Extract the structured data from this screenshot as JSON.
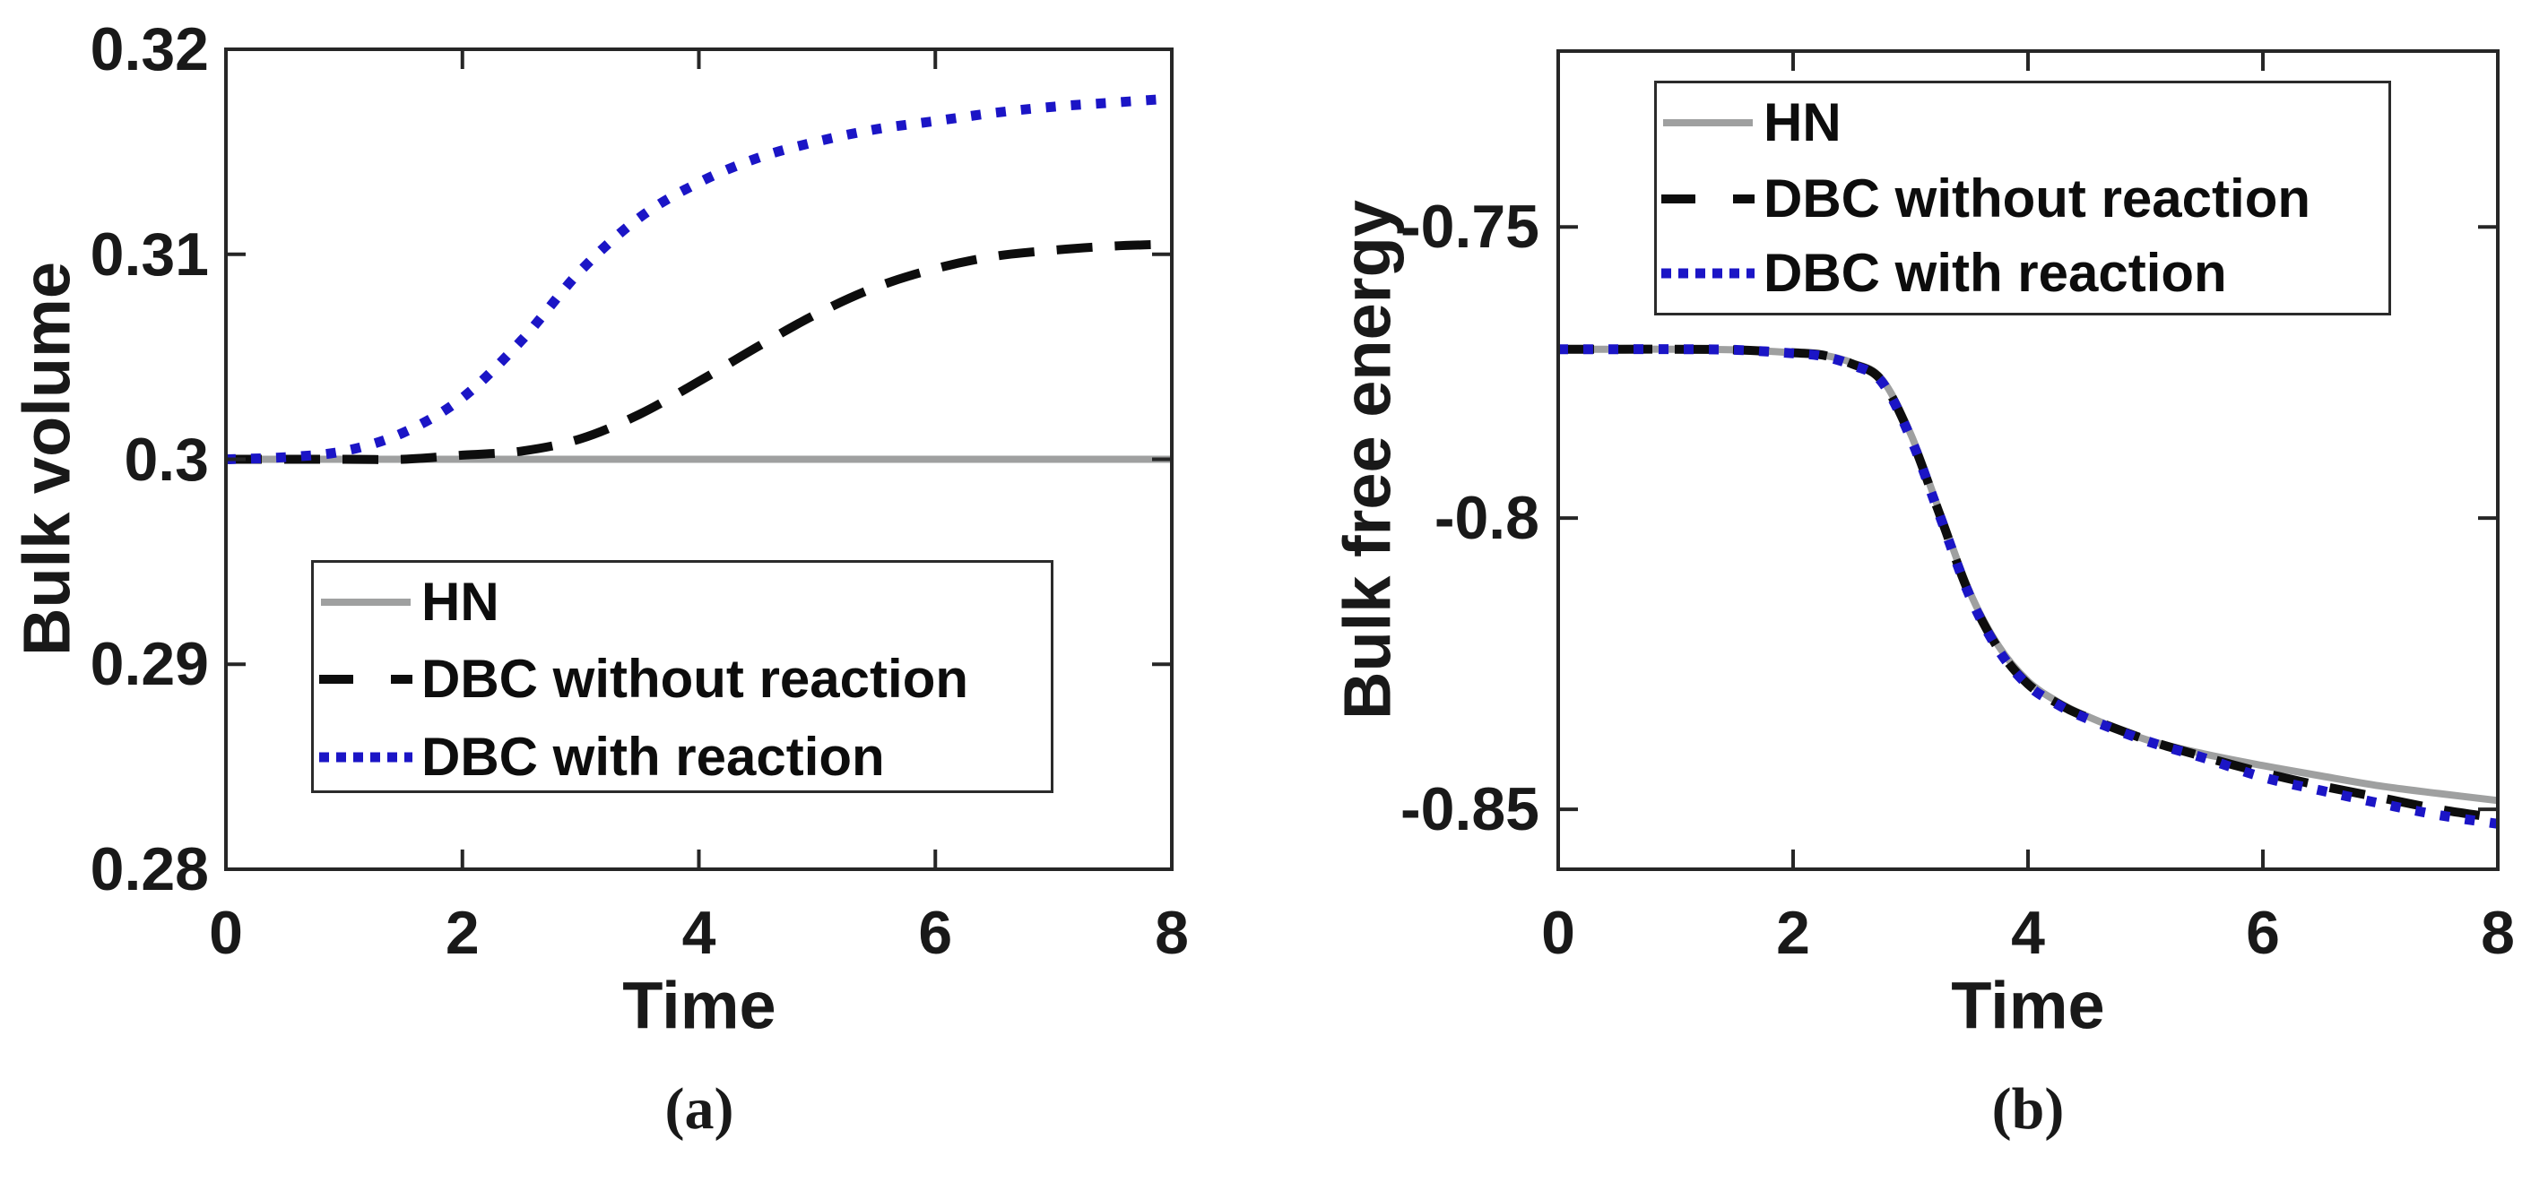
{
  "figure": {
    "panel_a_label": "(a)",
    "panel_b_label": "(b)"
  },
  "chart_data": [
    {
      "type": "line",
      "panel": "a",
      "title": "",
      "xlabel": "Time",
      "ylabel": "Bulk volume",
      "xlim": [
        0,
        8
      ],
      "ylim": [
        0.28,
        0.32
      ],
      "grid": false,
      "legend_position": "lower-left-inside",
      "x_ticks": [
        0,
        2,
        4,
        6,
        8
      ],
      "x_tick_labels": [
        "0",
        "2",
        "4",
        "6",
        "8"
      ],
      "y_ticks": [
        0.32,
        0.31,
        0.3,
        0.29,
        0.28
      ],
      "y_tick_labels": [
        "0.32",
        "0.31",
        "0.3",
        "0.29",
        "0.28"
      ],
      "x": [
        0,
        0.5,
        1,
        1.5,
        2,
        2.5,
        3,
        3.5,
        4,
        4.5,
        5,
        5.5,
        6,
        6.5,
        7,
        7.5,
        8
      ],
      "series": [
        {
          "name": "HN",
          "color": "#9FA0A0",
          "line_style": "solid",
          "values": [
            0.3,
            0.3,
            0.3,
            0.3,
            0.3,
            0.3,
            0.3,
            0.3,
            0.3,
            0.3,
            0.3,
            0.3,
            0.3,
            0.3,
            0.3,
            0.3,
            0.3
          ]
        },
        {
          "name": "DBC without reaction",
          "color": "#0d0d0d",
          "line_style": "dashed",
          "values": [
            0.3,
            0.3,
            0.3,
            0.3,
            0.3002,
            0.3004,
            0.301,
            0.3022,
            0.3038,
            0.3055,
            0.3071,
            0.3084,
            0.3093,
            0.3099,
            0.3102,
            0.3104,
            0.3105
          ]
        },
        {
          "name": "DBC with reaction",
          "color": "#1B15C6",
          "line_style": "dotted",
          "values": [
            0.3,
            0.3001,
            0.3004,
            0.3013,
            0.303,
            0.3058,
            0.3092,
            0.3118,
            0.3135,
            0.3147,
            0.3155,
            0.3161,
            0.3165,
            0.3169,
            0.3172,
            0.3174,
            0.3176
          ]
        }
      ]
    },
    {
      "type": "line",
      "panel": "b",
      "title": "",
      "xlabel": "Time",
      "ylabel": "Bulk free energy",
      "xlim": [
        0,
        8
      ],
      "ylim": [
        -0.86,
        -0.72
      ],
      "grid": false,
      "legend_position": "upper-left-inside",
      "x_ticks": [
        0,
        2,
        4,
        6,
        8
      ],
      "x_tick_labels": [
        "0",
        "2",
        "4",
        "6",
        "8"
      ],
      "y_ticks": [
        -0.75,
        -0.8,
        -0.85
      ],
      "y_tick_labels": [
        "-0.75",
        "-0.8",
        "-0.85"
      ],
      "x": [
        0,
        0.5,
        1,
        1.5,
        2,
        2.25,
        2.5,
        2.75,
        3,
        3.25,
        3.5,
        3.75,
        4,
        4.25,
        4.5,
        5,
        5.5,
        6,
        6.5,
        7,
        7.5,
        8
      ],
      "series": [
        {
          "name": "HN",
          "color": "#9FA0A0",
          "line_style": "solid",
          "values": [
            -0.771,
            -0.771,
            -0.771,
            -0.7711,
            -0.7716,
            -0.772,
            -0.7733,
            -0.776,
            -0.7855,
            -0.799,
            -0.8125,
            -0.822,
            -0.828,
            -0.8315,
            -0.834,
            -0.838,
            -0.8405,
            -0.8425,
            -0.8443,
            -0.846,
            -0.8473,
            -0.8485
          ]
        },
        {
          "name": "DBC without reaction",
          "color": "#0d0d0d",
          "line_style": "dashed",
          "values": [
            -0.771,
            -0.771,
            -0.771,
            -0.7711,
            -0.7716,
            -0.772,
            -0.7735,
            -0.7763,
            -0.786,
            -0.7995,
            -0.813,
            -0.8225,
            -0.8285,
            -0.8318,
            -0.8342,
            -0.838,
            -0.841,
            -0.8437,
            -0.846,
            -0.848,
            -0.85,
            -0.8515
          ]
        },
        {
          "name": "DBC with reaction",
          "color": "#1B15C6",
          "line_style": "dotted",
          "values": [
            -0.771,
            -0.771,
            -0.771,
            -0.7711,
            -0.7717,
            -0.7722,
            -0.7737,
            -0.7765,
            -0.7862,
            -0.7997,
            -0.8132,
            -0.8227,
            -0.8287,
            -0.832,
            -0.8344,
            -0.8382,
            -0.8412,
            -0.8445,
            -0.8468,
            -0.849,
            -0.851,
            -0.8525
          ]
        }
      ]
    }
  ]
}
